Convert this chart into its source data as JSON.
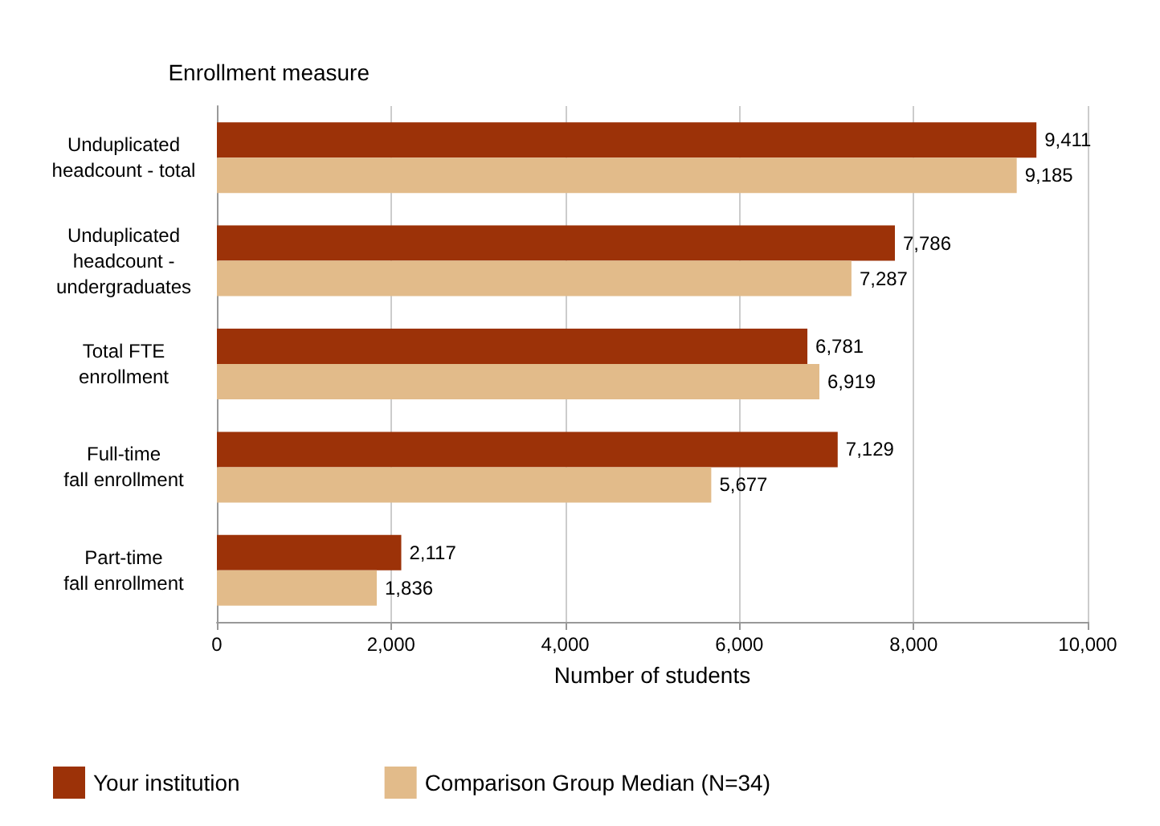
{
  "chart_data": {
    "type": "bar",
    "orientation": "horizontal",
    "ylabel": "Enrollment measure",
    "xlabel": "Number of students",
    "categories": [
      "Unduplicated\nheadcount - total",
      "Unduplicated\nheadcount -\nundergraduates",
      "Total FTE\nenrollment",
      "Full-time\nfall enrollment",
      "Part-time\nfall enrollment"
    ],
    "series": [
      {
        "name": "Your institution",
        "color": "#9c3208",
        "values": [
          9411,
          7786,
          6781,
          7129,
          2117
        ],
        "value_labels": [
          "9,411",
          "7,786",
          "6,781",
          "7,129",
          "2,117"
        ]
      },
      {
        "name": "Comparison Group Median (N=34)",
        "color": "#e2bb8a",
        "values": [
          9185,
          7287,
          6919,
          5677,
          1836
        ],
        "value_labels": [
          "9,185",
          "7,287",
          "6,919",
          "5,677",
          "1,836"
        ]
      }
    ],
    "xlim": [
      0,
      10000
    ],
    "xticks": [
      0,
      {
        "value": 2000,
        "label": "2,000"
      },
      {
        "value": 4000,
        "label": "4,000"
      },
      {
        "value": 6000,
        "label": "6,000"
      },
      {
        "value": 8000,
        "label": "8,000"
      },
      {
        "value": 10000,
        "label": "10,000"
      }
    ],
    "grid": "x",
    "legend": "bottom left"
  }
}
